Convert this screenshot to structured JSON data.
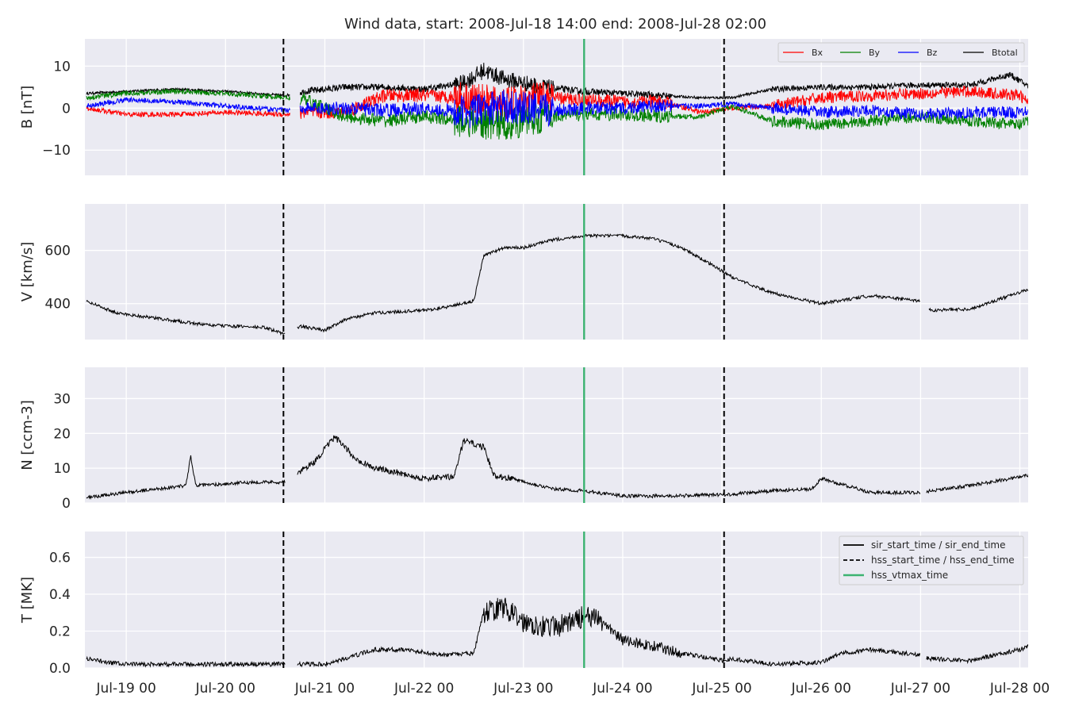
{
  "title": "Wind data, start: 2008-Jul-18 14:00  end: 2008-Jul-28 02:00",
  "colors": {
    "background": "#eaeaf2",
    "grid": "#ffffff",
    "Bx": "#ff0000",
    "By": "#008000",
    "Bz": "#0000ff",
    "Btotal": "#000000",
    "event_line": "#000000",
    "vtmax_line": "#3cb371"
  },
  "x_axis": {
    "ticks": [
      {
        "t": 0.0,
        "label": "Jul-19 00"
      },
      {
        "t": 1.0,
        "label": "Jul-20 00"
      },
      {
        "t": 2.0,
        "label": "Jul-21 00"
      },
      {
        "t": 3.0,
        "label": "Jul-22 00"
      },
      {
        "t": 4.0,
        "label": "Jul-23 00"
      },
      {
        "t": 5.0,
        "label": "Jul-24 00"
      },
      {
        "t": 6.0,
        "label": "Jul-25 00"
      },
      {
        "t": 7.0,
        "label": "Jul-26 00"
      },
      {
        "t": 8.0,
        "label": "Jul-27 00"
      },
      {
        "t": 9.0,
        "label": "Jul-28 00"
      }
    ]
  },
  "events": {
    "sir_start_time": "2008-Jul-20 14:00",
    "hss_end_time": "2008-Jul-25 00:30",
    "hss_vtmax_time": "2008-Jul-23 14:40"
  },
  "legend_B": {
    "location": "upper right",
    "entries": [
      {
        "label": "Bx",
        "color": "#ff0000"
      },
      {
        "label": "By",
        "color": "#008000"
      },
      {
        "label": "Bz",
        "color": "#0000ff"
      },
      {
        "label": "Btotal",
        "color": "#000000"
      }
    ]
  },
  "legend_T": {
    "location": "upper right",
    "entries": [
      {
        "label": "sir_start_time / sir_end_time",
        "style": "solid",
        "color": "#000000"
      },
      {
        "label": "hss_start_time / hss_end_time",
        "style": "dashed",
        "color": "#000000"
      },
      {
        "label": "hss_vtmax_time",
        "style": "solid",
        "color": "#3cb371"
      }
    ]
  },
  "chart_data": [
    {
      "type": "line",
      "panel": "B",
      "title": "Wind data, start: 2008-Jul-18 14:00  end: 2008-Jul-28 02:00",
      "ylabel": "B [nT]",
      "ylim": [
        -16,
        16.5
      ],
      "yticks": [
        {
          "v": 10,
          "label": "10"
        },
        {
          "v": 0,
          "label": "0"
        },
        {
          "v": -10,
          "label": "−10"
        }
      ],
      "grid": true,
      "legend": "top-right",
      "x_units": "days since Jul-19 00:00",
      "data_gap": [
        1.65,
        1.75
      ],
      "series": [
        {
          "name": "Bx",
          "x": [
            -0.4,
            0.0,
            0.5,
            1.0,
            1.6,
            1.8,
            2.2,
            2.6,
            3.0,
            3.4,
            3.8,
            4.2,
            4.6,
            5.0,
            5.4,
            5.8,
            6.1,
            6.5,
            7.0,
            7.5,
            8.0,
            8.5,
            9.0,
            9.1
          ],
          "y": [
            0,
            -1.5,
            -1.5,
            -1,
            -1.5,
            -1,
            -1,
            3,
            3,
            2.5,
            1,
            2.5,
            2,
            1.5,
            1.5,
            -1,
            0,
            0.5,
            2.5,
            3,
            3.5,
            4,
            3,
            1
          ]
        },
        {
          "name": "By",
          "x": [
            -0.4,
            0.0,
            0.5,
            1.0,
            1.6,
            1.8,
            2.2,
            2.6,
            3.0,
            3.4,
            3.8,
            4.2,
            4.6,
            5.0,
            5.4,
            5.8,
            6.1,
            6.5,
            7.0,
            7.5,
            8.0,
            8.5,
            9.0,
            9.1
          ],
          "y": [
            2.5,
            3.5,
            4,
            3.5,
            2.5,
            2,
            -2,
            -3,
            -2,
            -3,
            -4,
            -2,
            -1.5,
            -1.5,
            -2,
            -2,
            0.5,
            -3,
            -4,
            -3,
            -2,
            -3,
            -4,
            -3
          ]
        },
        {
          "name": "Bz",
          "x": [
            -0.4,
            0.0,
            0.5,
            1.0,
            1.6,
            1.8,
            2.2,
            2.6,
            3.0,
            3.4,
            3.8,
            4.2,
            4.6,
            5.0,
            5.4,
            5.8,
            6.1,
            6.5,
            7.0,
            7.5,
            8.0,
            8.5,
            9.0,
            9.1
          ],
          "y": [
            0.5,
            2,
            1.5,
            0.5,
            -0.5,
            0,
            0,
            -0.5,
            0,
            -1,
            0.5,
            -0.5,
            0,
            0,
            0.5,
            0.5,
            1,
            0,
            -1,
            -0.5,
            -1.5,
            -1,
            -1,
            0
          ]
        },
        {
          "name": "Btotal",
          "x": [
            -0.4,
            0.0,
            0.5,
            1.0,
            1.6,
            1.8,
            2.2,
            2.6,
            3.0,
            3.4,
            3.6,
            3.8,
            4.2,
            4.6,
            5.0,
            5.4,
            5.8,
            6.1,
            6.5,
            7.0,
            7.5,
            8.0,
            8.5,
            8.9,
            9.1
          ],
          "y": [
            3.5,
            4,
            4.5,
            4,
            3,
            4,
            5,
            5,
            4.5,
            6,
            9,
            7,
            5,
            4,
            3.5,
            3,
            2.5,
            2.5,
            4.5,
            5,
            5,
            5.5,
            5.5,
            8,
            5
          ]
        }
      ]
    },
    {
      "type": "line",
      "panel": "V",
      "ylabel": "V [km/s]",
      "ylim": [
        265,
        775
      ],
      "yticks": [
        {
          "v": 600,
          "label": "600"
        },
        {
          "v": 400,
          "label": "400"
        }
      ],
      "grid": true,
      "x_units": "days since Jul-19 00:00",
      "data_gap": [
        1.6,
        1.72
      ],
      "series": [
        {
          "x": [
            -0.4,
            -0.1,
            0.2,
            0.5,
            0.8,
            1.1,
            1.4,
            1.6,
            1.75,
            2.0,
            2.2,
            2.5,
            3.0,
            3.2,
            3.5,
            3.6,
            3.8,
            4.0,
            4.3,
            4.6,
            5.0,
            5.3,
            5.6,
            5.9,
            6.1,
            6.5,
            7.0,
            7.5,
            8.0,
            8.1,
            8.5,
            9.1
          ],
          "y": [
            410,
            365,
            350,
            335,
            320,
            315,
            310,
            285,
            315,
            300,
            340,
            365,
            375,
            385,
            410,
            580,
            610,
            610,
            640,
            655,
            655,
            645,
            610,
            545,
            500,
            440,
            400,
            430,
            410,
            375,
            380,
            455
          ]
        }
      ]
    },
    {
      "type": "line",
      "panel": "N",
      "ylabel": "N [ccm-3]",
      "ylim": [
        0,
        39
      ],
      "yticks": [
        {
          "v": 30,
          "label": "30"
        },
        {
          "v": 20,
          "label": "20"
        },
        {
          "v": 10,
          "label": "10"
        },
        {
          "v": 0,
          "label": "0"
        }
      ],
      "grid": true,
      "x_units": "days since Jul-19 00:00",
      "data_gap": [
        1.6,
        1.72
      ],
      "series": [
        {
          "x": [
            -0.4,
            0.0,
            0.3,
            0.6,
            0.65,
            0.7,
            1.0,
            1.3,
            1.6,
            1.75,
            1.9,
            2.1,
            2.3,
            2.5,
            2.7,
            3.0,
            3.3,
            3.4,
            3.6,
            3.7,
            3.9,
            4.3,
            4.6,
            5.0,
            5.5,
            6.1,
            6.5,
            6.9,
            7.0,
            7.5,
            8.0,
            8.1,
            8.5,
            9.1
          ],
          "y": [
            1.5,
            3,
            4,
            5,
            13.5,
            5,
            5.5,
            6,
            6,
            9,
            12,
            19,
            13,
            10,
            9,
            7,
            7.5,
            18,
            16,
            8,
            7,
            4,
            3.5,
            2,
            2,
            2.5,
            3.5,
            4,
            7,
            3,
            3,
            3.5,
            5,
            8
          ]
        }
      ]
    },
    {
      "type": "line",
      "panel": "T",
      "ylabel": "T [MK]",
      "ylim": [
        0,
        0.74
      ],
      "yticks": [
        {
          "v": 0.6,
          "label": "0.6"
        },
        {
          "v": 0.4,
          "label": "0.4"
        },
        {
          "v": 0.2,
          "label": "0.2"
        },
        {
          "v": 0.0,
          "label": "0.0"
        }
      ],
      "grid": true,
      "legend": "top-right",
      "x_units": "days since Jul-19 00:00",
      "data_gap": [
        1.6,
        1.72
      ],
      "series": [
        {
          "x": [
            -0.4,
            -0.2,
            0.0,
            0.5,
            1.0,
            1.5,
            1.6,
            1.75,
            2.0,
            2.2,
            2.5,
            2.8,
            3.2,
            3.5,
            3.6,
            3.8,
            4.0,
            4.3,
            4.5,
            4.6,
            4.8,
            5.0,
            5.3,
            5.6,
            6.0,
            6.1,
            6.5,
            7.0,
            7.2,
            7.5,
            8.0,
            8.1,
            8.5,
            9.0,
            9.1
          ],
          "y": [
            0.05,
            0.03,
            0.02,
            0.02,
            0.02,
            0.02,
            0.03,
            0.02,
            0.02,
            0.05,
            0.1,
            0.1,
            0.07,
            0.08,
            0.3,
            0.33,
            0.25,
            0.22,
            0.25,
            0.28,
            0.25,
            0.15,
            0.12,
            0.08,
            0.04,
            0.05,
            0.02,
            0.03,
            0.08,
            0.1,
            0.07,
            0.05,
            0.04,
            0.1,
            0.12
          ]
        }
      ]
    }
  ]
}
